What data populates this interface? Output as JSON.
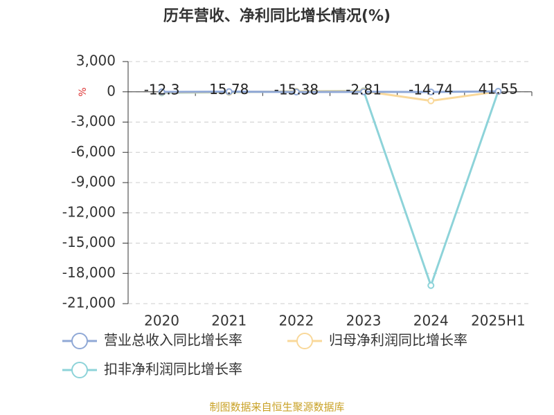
{
  "chart_data": {
    "type": "line",
    "title": "历年营收、净利同比增长情况(%)",
    "y_axis_label": "%",
    "categories": [
      "2020",
      "2021",
      "2022",
      "2023",
      "2024",
      "2025H1"
    ],
    "series": [
      {
        "name": "营业总收入同比增长率",
        "color": "#8fa8d6",
        "values": [
          -12.3,
          15.78,
          -15.38,
          -2.81,
          -14.74,
          41.55
        ]
      },
      {
        "name": "归母净利润同比增长率",
        "color": "#f9d89a",
        "values": [
          -60,
          -30,
          40,
          70,
          -890,
          30
        ]
      },
      {
        "name": "扣非净利润同比增长率",
        "color": "#8dd3d9",
        "values": [
          -100,
          -50,
          50,
          100,
          -19200,
          50
        ]
      }
    ],
    "ylim": [
      -21000,
      3000
    ],
    "yticks": [
      {
        "value": 3000,
        "label": "3,000"
      },
      0,
      {
        "value": -3000,
        "label": "-3,000"
      },
      {
        "value": -6000,
        "label": "-6,000"
      },
      {
        "value": -9000,
        "label": "-9,000"
      },
      {
        "value": -12000,
        "label": "-12,000"
      },
      {
        "value": -15000,
        "label": "-15,000"
      },
      {
        "value": -18000,
        "label": "-18,000"
      },
      {
        "value": -21000,
        "label": "-21,000"
      }
    ],
    "grid": true,
    "source": "制图数据来自恒生聚源数据库"
  }
}
